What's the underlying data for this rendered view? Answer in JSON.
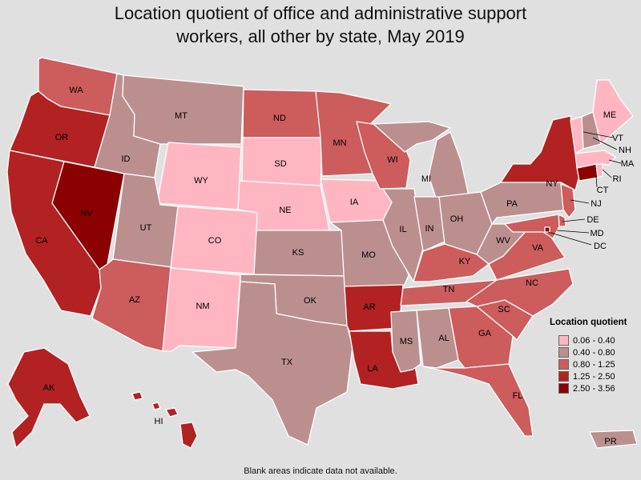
{
  "title_lines": [
    "Location quotient of office and administrative support",
    "workers, all other by state, May 2019"
  ],
  "legend": {
    "title": "Location quotient",
    "bins": [
      {
        "label": "0.06 - 0.40",
        "color": "#ffb6c1"
      },
      {
        "label": "0.40 - 0.80",
        "color": "#bc8f8f"
      },
      {
        "label": "0.80 - 1.25",
        "color": "#cd5c5c"
      },
      {
        "label": "1.25 - 2.50",
        "color": "#b22222"
      },
      {
        "label": "2.50 - 3.56",
        "color": "#8b0000"
      }
    ]
  },
  "footnote": "Blank areas indicate data not available.",
  "states": [
    {
      "abbr": "WA",
      "bin": 2
    },
    {
      "abbr": "OR",
      "bin": 3
    },
    {
      "abbr": "CA",
      "bin": 3
    },
    {
      "abbr": "NV",
      "bin": 4
    },
    {
      "abbr": "ID",
      "bin": 1
    },
    {
      "abbr": "MT",
      "bin": 1
    },
    {
      "abbr": "WY",
      "bin": 0
    },
    {
      "abbr": "UT",
      "bin": 1
    },
    {
      "abbr": "AZ",
      "bin": 2
    },
    {
      "abbr": "CO",
      "bin": 0
    },
    {
      "abbr": "NM",
      "bin": 0
    },
    {
      "abbr": "ND",
      "bin": 2
    },
    {
      "abbr": "SD",
      "bin": 0
    },
    {
      "abbr": "NE",
      "bin": 0
    },
    {
      "abbr": "KS",
      "bin": 1
    },
    {
      "abbr": "OK",
      "bin": 1
    },
    {
      "abbr": "TX",
      "bin": 1
    },
    {
      "abbr": "MN",
      "bin": 2
    },
    {
      "abbr": "IA",
      "bin": 0
    },
    {
      "abbr": "MO",
      "bin": 1
    },
    {
      "abbr": "AR",
      "bin": 3
    },
    {
      "abbr": "LA",
      "bin": 3
    },
    {
      "abbr": "WI",
      "bin": 2
    },
    {
      "abbr": "IL",
      "bin": 1
    },
    {
      "abbr": "MI",
      "bin": 1
    },
    {
      "abbr": "IN",
      "bin": 1
    },
    {
      "abbr": "OH",
      "bin": 1
    },
    {
      "abbr": "KY",
      "bin": 2
    },
    {
      "abbr": "TN",
      "bin": 2
    },
    {
      "abbr": "MS",
      "bin": 1
    },
    {
      "abbr": "AL",
      "bin": 1
    },
    {
      "abbr": "GA",
      "bin": 2
    },
    {
      "abbr": "FL",
      "bin": 2
    },
    {
      "abbr": "SC",
      "bin": 2
    },
    {
      "abbr": "NC",
      "bin": 2
    },
    {
      "abbr": "VA",
      "bin": 2
    },
    {
      "abbr": "WV",
      "bin": 1
    },
    {
      "abbr": "PA",
      "bin": 1
    },
    {
      "abbr": "NY",
      "bin": 3
    },
    {
      "abbr": "NJ",
      "bin": 2
    },
    {
      "abbr": "DE",
      "bin": 2
    },
    {
      "abbr": "MD",
      "bin": 2
    },
    {
      "abbr": "DC",
      "bin": 4
    },
    {
      "abbr": "CT",
      "bin": 4
    },
    {
      "abbr": "RI",
      "bin": 0
    },
    {
      "abbr": "MA",
      "bin": 0
    },
    {
      "abbr": "VT",
      "bin": 0
    },
    {
      "abbr": "NH",
      "bin": 1
    },
    {
      "abbr": "ME",
      "bin": 0
    },
    {
      "abbr": "AK",
      "bin": 3
    },
    {
      "abbr": "HI",
      "bin": 3
    },
    {
      "abbr": "PR",
      "bin": 1
    }
  ]
}
